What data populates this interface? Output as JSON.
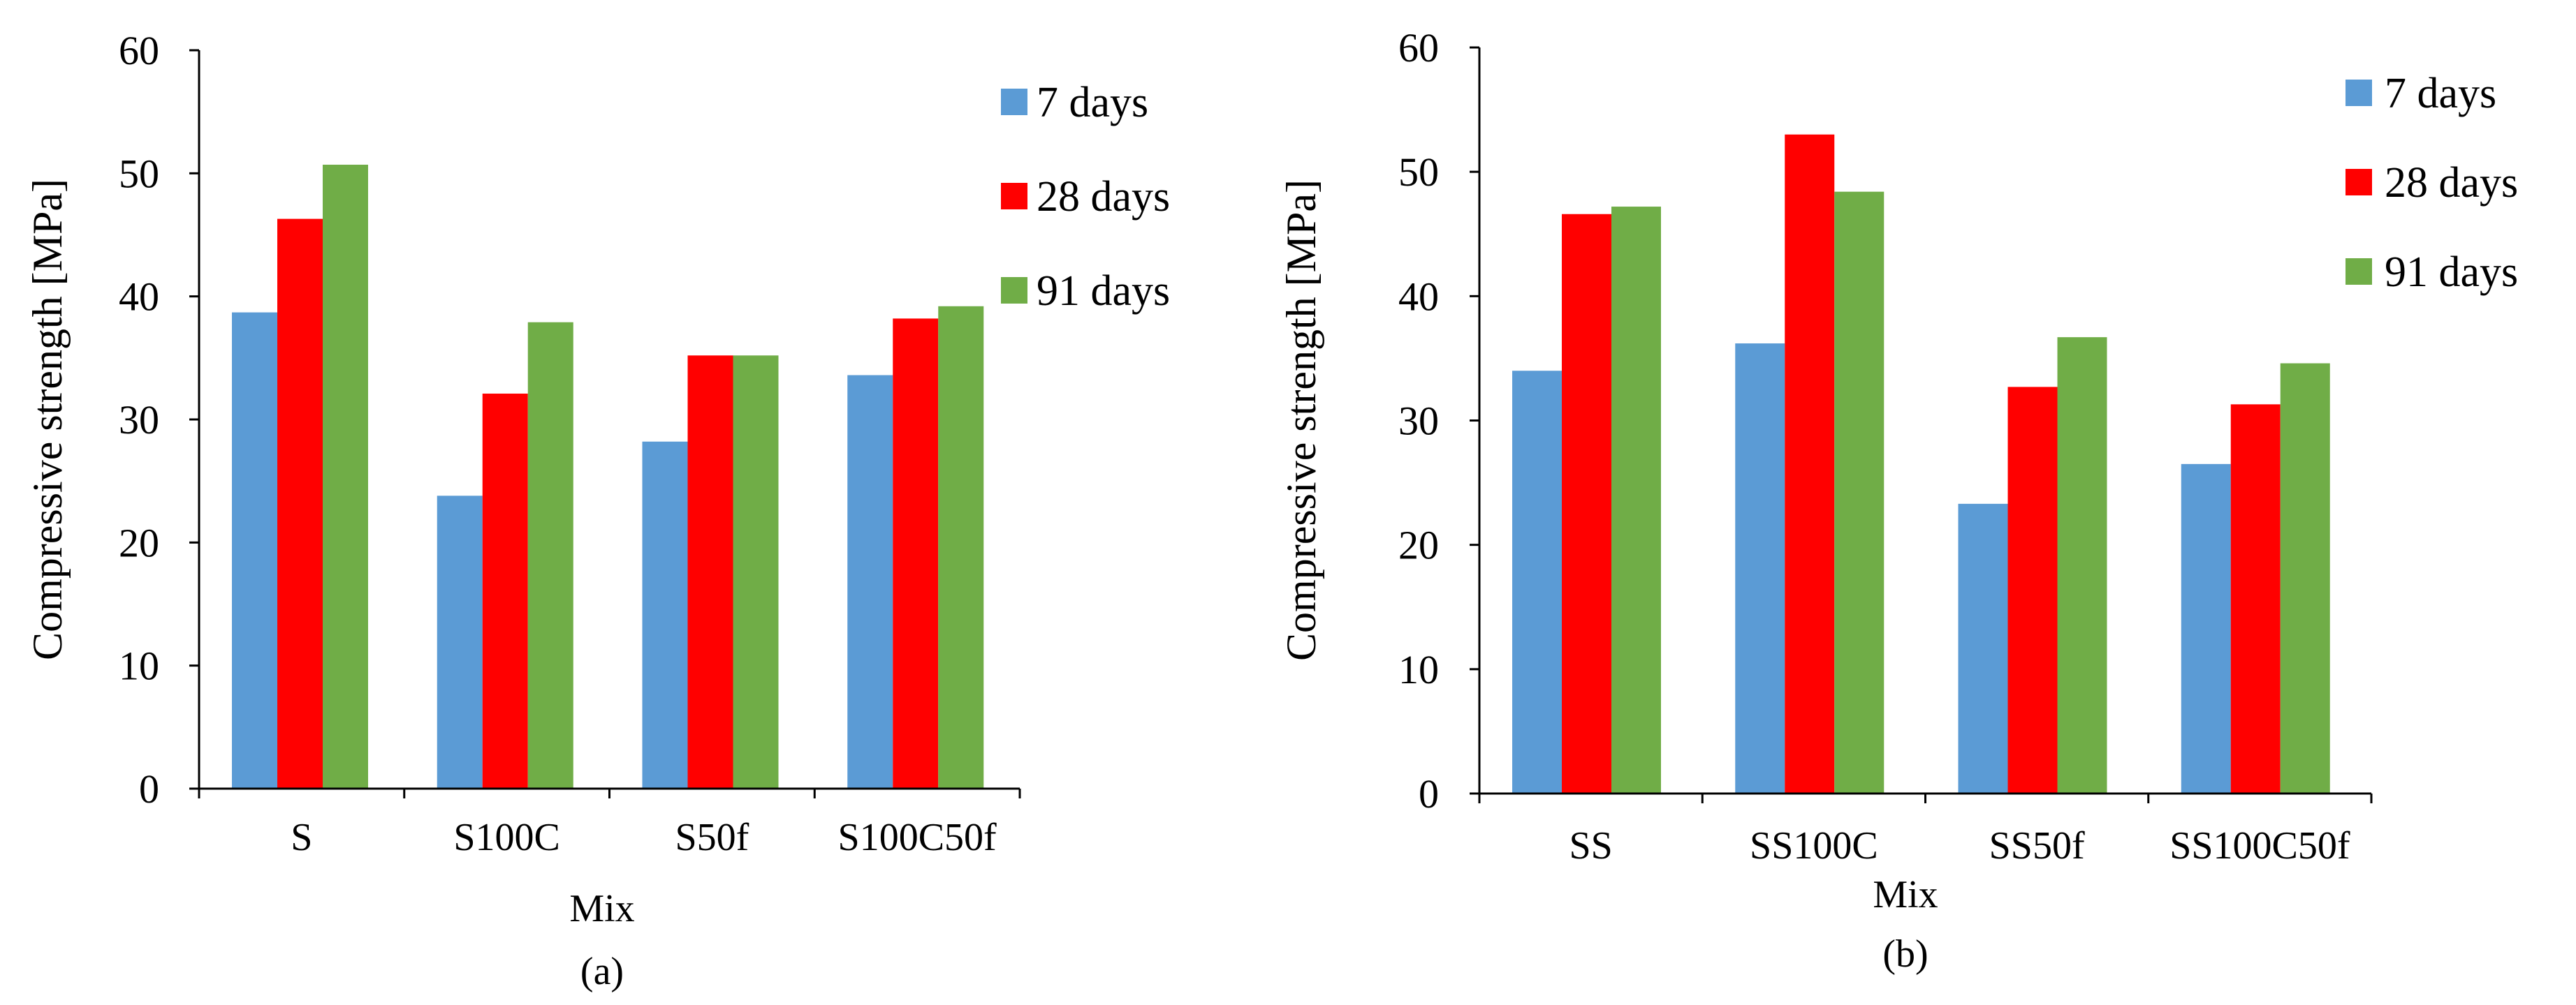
{
  "colors": {
    "7_days": "#5b9bd5",
    "28_days": "#ff0000",
    "91_days": "#70ad47"
  },
  "chart_data": [
    {
      "type": "bar",
      "panel_label": "(a)",
      "title": "",
      "xlabel": "Mix",
      "ylabel": "Compressive strength [MPa]",
      "ylim": [
        0,
        60
      ],
      "yticks": [
        0,
        10,
        20,
        30,
        40,
        50,
        60
      ],
      "grid": false,
      "legend_position": "top-right",
      "categories": [
        "S",
        "S100C",
        "S50f",
        "S100C50f"
      ],
      "series": [
        {
          "name": "7 days",
          "color_key": "7_days",
          "values": [
            38.7,
            23.8,
            28.2,
            33.6
          ]
        },
        {
          "name": "28 days",
          "color_key": "28_days",
          "values": [
            46.3,
            32.1,
            35.2,
            38.2
          ]
        },
        {
          "name": "91 days",
          "color_key": "91_days",
          "values": [
            50.7,
            37.9,
            35.2,
            39.2
          ]
        }
      ]
    },
    {
      "type": "bar",
      "panel_label": "(b)",
      "title": "",
      "xlabel": "Mix",
      "ylabel": "Compressive strength [MPa]",
      "ylim": [
        0,
        60
      ],
      "yticks": [
        0,
        10,
        20,
        30,
        40,
        50,
        60
      ],
      "grid": false,
      "legend_position": "top-right",
      "categories": [
        "SS",
        "SS100C",
        "SS50f",
        "SS100C50f"
      ],
      "series": [
        {
          "name": "7 days",
          "color_key": "7_days",
          "values": [
            34.0,
            36.2,
            23.3,
            26.5
          ]
        },
        {
          "name": "28 days",
          "color_key": "28_days",
          "values": [
            46.6,
            53.0,
            32.7,
            31.3
          ]
        },
        {
          "name": "91 days",
          "color_key": "91_days",
          "values": [
            47.2,
            48.4,
            36.7,
            34.6
          ]
        }
      ]
    }
  ]
}
